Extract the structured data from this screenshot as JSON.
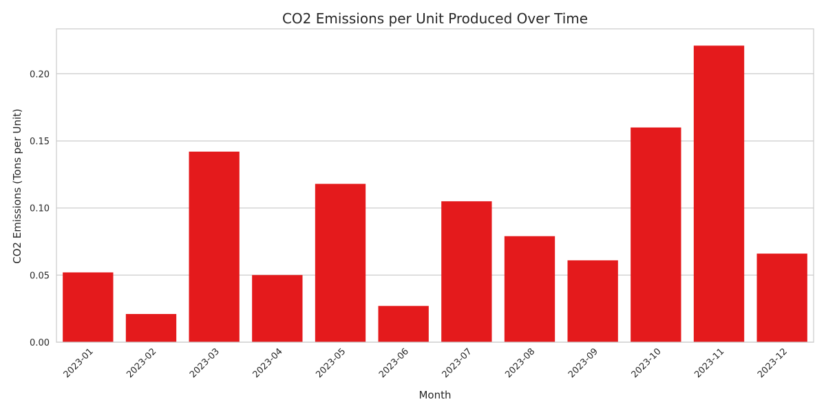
{
  "chart_data": {
    "type": "bar",
    "title": "CO2 Emissions per Unit Produced Over Time",
    "xlabel": "Month",
    "ylabel": "CO2 Emissions (Tons per Unit)",
    "categories": [
      "2023-01",
      "2023-02",
      "2023-03",
      "2023-04",
      "2023-05",
      "2023-06",
      "2023-07",
      "2023-08",
      "2023-09",
      "2023-10",
      "2023-11",
      "2023-12"
    ],
    "values": [
      0.052,
      0.021,
      0.142,
      0.05,
      0.118,
      0.027,
      0.105,
      0.079,
      0.061,
      0.16,
      0.221,
      0.066
    ],
    "ylim": [
      0,
      0.2335
    ],
    "yticks": [
      0.0,
      0.05,
      0.1,
      0.15,
      0.2
    ],
    "ytick_labels": [
      "0.00",
      "0.05",
      "0.10",
      "0.15",
      "0.20"
    ],
    "grid": "horizontal",
    "bar_color": "#e41a1c",
    "grid_color": "#cccccc",
    "frame_color": "#cccccc"
  }
}
